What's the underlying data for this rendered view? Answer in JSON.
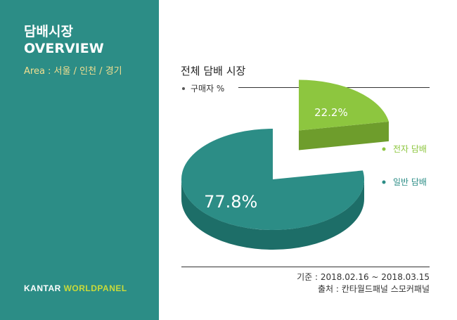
{
  "sidebar": {
    "title_line1": "담배시장",
    "title_line2": "OVERVIEW",
    "area": "Area : 서울 / 인천 / 경기",
    "brand_kantar": "KANTAR ",
    "brand_worldpanel": "WORLDPANEL"
  },
  "colors": {
    "sidebar_bg": "#2c8d86",
    "e_cigarette": "#8dc63f",
    "general": "#2c8d86",
    "area_text": "#f3df90",
    "brand_accent": "#c9da3a"
  },
  "footer": {
    "basis": "기준 : 2018.02.16 ~ 2018.03.15",
    "source": "출처 : 칸타월드패널 스모커패널"
  },
  "chart_data": {
    "type": "pie",
    "title": "전체 담배 시장",
    "subtitle": "구매자 %",
    "categories": [
      "전자 담배",
      "일반 담배"
    ],
    "values": [
      22.2,
      77.8
    ],
    "data_labels": [
      "22.2%",
      "77.8%"
    ],
    "unit": "%",
    "exploded": "전자 담배",
    "legend": "right"
  }
}
